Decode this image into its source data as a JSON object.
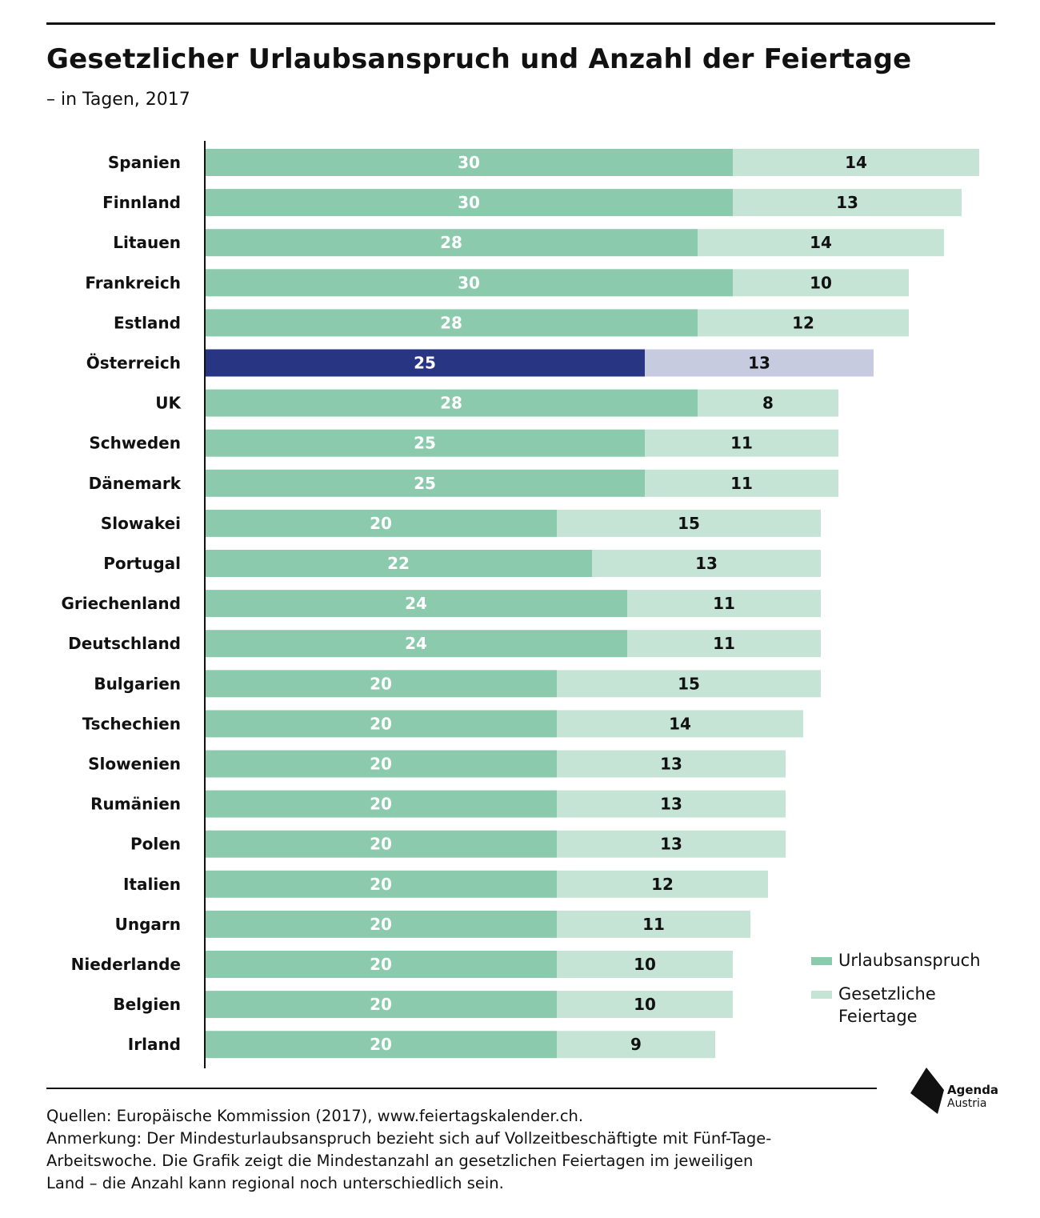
{
  "header": {
    "title": "Gesetzlicher Urlaubsanspruch und Anzahl der Feiertage",
    "subtitle": "– in Tagen, 2017"
  },
  "colors": {
    "urlaub": "#8ccaae",
    "feiertage": "#c6e4d6",
    "urlaub_highlight": "#283583",
    "feiertage_highlight": "#c7cbe0",
    "label_light": "#ffffff",
    "label_dark": "#111111"
  },
  "chart_data": {
    "type": "bar",
    "orientation": "horizontal",
    "stacked": true,
    "categories": [
      "Spanien",
      "Finnland",
      "Litauen",
      "Frankreich",
      "Estland",
      "Österreich",
      "UK",
      "Schweden",
      "Dänemark",
      "Slowakei",
      "Portugal",
      "Griechenland",
      "Deutschland",
      "Bulgarien",
      "Tschechien",
      "Slowenien",
      "Rumänien",
      "Polen",
      "Italien",
      "Ungarn",
      "Niederlande",
      "Belgien",
      "Irland"
    ],
    "series": [
      {
        "name": "Urlaubsanspruch",
        "values": [
          30,
          30,
          28,
          30,
          28,
          25,
          28,
          25,
          25,
          20,
          22,
          24,
          24,
          20,
          20,
          20,
          20,
          20,
          20,
          20,
          20,
          20,
          20
        ]
      },
      {
        "name": "Gesetzliche Feiertage",
        "values": [
          14,
          13,
          14,
          10,
          12,
          13,
          8,
          11,
          11,
          15,
          13,
          11,
          11,
          15,
          14,
          13,
          13,
          13,
          12,
          11,
          10,
          10,
          9
        ]
      }
    ],
    "highlight": "Österreich",
    "xlim": [
      0,
      44
    ],
    "grid": false,
    "legend_position": "bottom-right",
    "data_labels": true
  },
  "legend": {
    "items": [
      {
        "label": "Urlaubsanspruch"
      },
      {
        "label": "Gesetzliche Feiertage"
      }
    ]
  },
  "footer": {
    "lines": [
      "Quellen: Europäische Kommission (2017), www.feiertagskalender.ch.",
      "Anmerkung: Der Mindesturlaubsanspruch bezieht sich auf Vollzeitbeschäftigte mit Fünf-Tage-",
      "Arbeitswoche. Die Grafik zeigt die Mindestanzahl an gesetzlichen Feiertagen im jeweiligen",
      "Land – die Anzahl kann regional noch unterschiedlich sein."
    ],
    "logo": {
      "name": "Agenda",
      "sub": "Austria"
    }
  }
}
